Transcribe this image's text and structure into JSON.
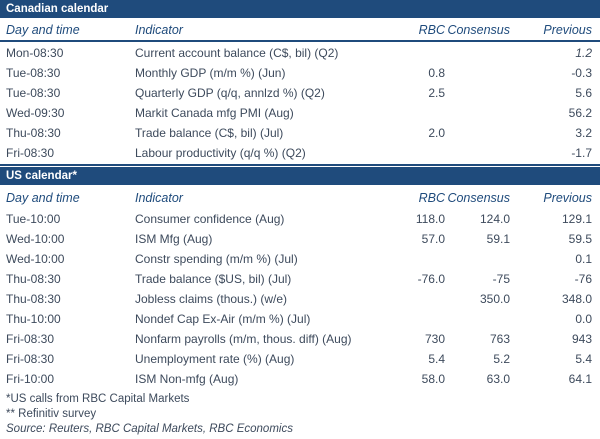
{
  "colors": {
    "bar_background": "#1F4B7C",
    "bar_text": "#FFFFFF",
    "column_header_text": "#1F4B7C",
    "body_text": "#3D4A5C",
    "rule": "#1F4B7C"
  },
  "columns": {
    "day": "Day and time",
    "indicator": "Indicator",
    "rbc": "RBC",
    "consensus": "Consensus",
    "previous": "Previous"
  },
  "sections": [
    {
      "title": "Canadian calendar",
      "header_rule": true,
      "bottom_rule": true,
      "rows": [
        {
          "day": "Mon-08:30",
          "indicator": "Current account balance (C$, bil) (Q2)",
          "rbc": "",
          "consensus": "",
          "previous": "1.2",
          "previous_italic": true
        },
        {
          "day": "Tue-08:30",
          "indicator": "Monthly GDP (m/m %) (Jun)",
          "rbc": "0.8",
          "consensus": "",
          "previous": "-0.3",
          "previous_italic": false
        },
        {
          "day": "Tue-08:30",
          "indicator": "Quarterly GDP (q/q, annlzd %) (Q2)",
          "rbc": "2.5",
          "consensus": "",
          "previous": "5.6",
          "previous_italic": false
        },
        {
          "day": "Wed-09:30",
          "indicator": "Markit Canada mfg PMI (Aug)",
          "rbc": "",
          "consensus": "",
          "previous": "56.2",
          "previous_italic": false
        },
        {
          "day": "Thu-08:30",
          "indicator": "Trade balance (C$, bil) (Jul)",
          "rbc": "2.0",
          "consensus": "",
          "previous": "3.2",
          "previous_italic": false
        },
        {
          "day": "Fri-08:30",
          "indicator": "Labour productivity (q/q %) (Q2)",
          "rbc": "",
          "consensus": "",
          "previous": "-1.7",
          "previous_italic": false
        }
      ]
    },
    {
      "title": "US calendar*",
      "header_rule": false,
      "bottom_rule": false,
      "rows": [
        {
          "day": "Tue-10:00",
          "indicator": "Consumer confidence (Aug)",
          "rbc": "118.0",
          "consensus": "124.0",
          "previous": "129.1",
          "previous_italic": false
        },
        {
          "day": "Wed-10:00",
          "indicator": "ISM Mfg (Aug)",
          "rbc": "57.0",
          "consensus": "59.1",
          "previous": "59.5",
          "previous_italic": false
        },
        {
          "day": "Wed-10:00",
          "indicator": "Constr spending (m/m %) (Jul)",
          "rbc": "",
          "consensus": "",
          "previous": "0.1",
          "previous_italic": false
        },
        {
          "day": "Thu-08:30",
          "indicator": "Trade balance ($US, bil) (Jul)",
          "rbc": "-76.0",
          "consensus": "-75",
          "previous": "-76",
          "previous_italic": false
        },
        {
          "day": "Thu-08:30",
          "indicator": "Jobless claims (thous.) (w/e)",
          "rbc": "",
          "consensus": "350.0",
          "previous": "348.0",
          "previous_italic": false
        },
        {
          "day": "Thu-10:00",
          "indicator": "Nondef Cap Ex-Air (m/m %) (Jul)",
          "rbc": "",
          "consensus": "",
          "previous": "0.0",
          "previous_italic": false
        },
        {
          "day": "Fri-08:30",
          "indicator": "Nonfarm payrolls (m/m, thous. diff) (Aug)",
          "rbc": "730",
          "consensus": "763",
          "previous": "943",
          "previous_italic": false
        },
        {
          "day": "Fri-08:30",
          "indicator": "Unemployment rate (%) (Aug)",
          "rbc": "5.4",
          "consensus": "5.2",
          "previous": "5.4",
          "previous_italic": false
        },
        {
          "day": "Fri-10:00",
          "indicator": "ISM Non-mfg (Aug)",
          "rbc": "58.0",
          "consensus": "63.0",
          "previous": "64.1",
          "previous_italic": false
        }
      ]
    }
  ],
  "footnotes": [
    {
      "text": "*US calls from RBC Capital Markets",
      "italic": false
    },
    {
      "text": "** Refinitiv survey",
      "italic": false
    },
    {
      "text": "Source: Reuters, RBC Capital Markets, RBC Economics",
      "italic": true
    }
  ]
}
